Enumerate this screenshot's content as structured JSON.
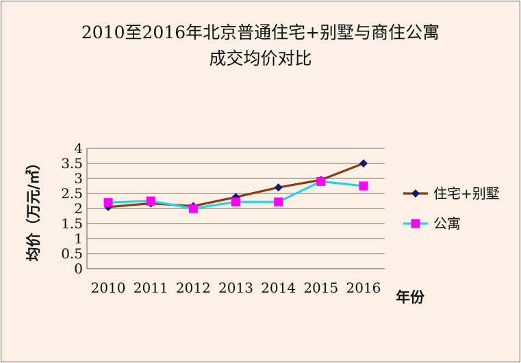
{
  "chart_data": {
    "type": "line",
    "title_line1": "2010至2016年北京普通住宅+别墅与商住公寓",
    "title_line2": "成交均价对比",
    "xlabel": "年份",
    "ylabel": "均价（万元/㎡）",
    "categories": [
      "2010",
      "2011",
      "2012",
      "2013",
      "2014",
      "2015",
      "2016"
    ],
    "yticks": [
      "0",
      "0.5",
      "1",
      "1.5",
      "2",
      "2.5",
      "3",
      "3.5",
      "4"
    ],
    "ylim": [
      0,
      4
    ],
    "grid": true,
    "legend_position": "right",
    "series": [
      {
        "name": "住宅+别墅",
        "values": [
          2.05,
          2.17,
          2.08,
          2.38,
          2.7,
          2.95,
          3.5
        ],
        "line_color": "#8b3a0f",
        "marker_color": "#0d1a6b",
        "marker": "diamond"
      },
      {
        "name": "公寓",
        "values": [
          2.2,
          2.25,
          2.0,
          2.22,
          2.22,
          2.9,
          2.75
        ],
        "line_color": "#22d3ee",
        "marker_color": "#ff00ff",
        "marker": "square"
      }
    ]
  }
}
